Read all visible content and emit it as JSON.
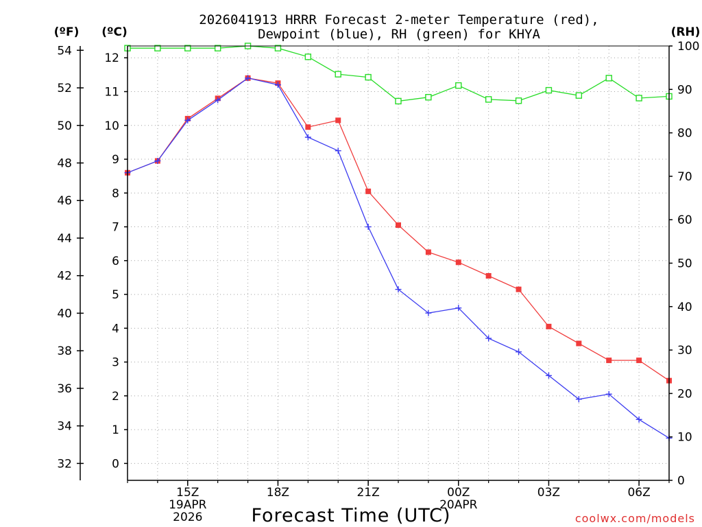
{
  "header": {
    "title_line1": "2026041913 HRRR Forecast 2-meter Temperature (red),",
    "title_line2": "Dewpoint (blue), RH (green) for KHYA",
    "unit_f": "(ºF)",
    "unit_c": "(ºC)",
    "unit_rh": "(RH)"
  },
  "footer": {
    "xlabel": "Forecast Time (UTC)",
    "watermark": "coolwx.com/models"
  },
  "colors": {
    "temperature": "#f03c3c",
    "dewpoint": "#3c3cf0",
    "rh": "#28dc28",
    "grid": "#a0a0a0"
  },
  "chart_data": {
    "type": "line",
    "title": "2026041913 HRRR Forecast 2-meter Temperature (red), Dewpoint (blue), RH (green) for KHYA",
    "xlabel": "Forecast Time (UTC)",
    "x_hours": [
      13,
      14,
      15,
      16,
      17,
      18,
      19,
      20,
      21,
      22,
      23,
      24,
      25,
      26,
      27,
      28,
      29,
      30,
      31
    ],
    "xlim": [
      13,
      31
    ],
    "x_ticks": [
      {
        "hour": 15,
        "lines": [
          "15Z",
          "19APR",
          "2026"
        ]
      },
      {
        "hour": 18,
        "lines": [
          "18Z"
        ]
      },
      {
        "hour": 21,
        "lines": [
          "21Z"
        ]
      },
      {
        "hour": 24,
        "lines": [
          "00Z",
          "20APR"
        ]
      },
      {
        "hour": 27,
        "lines": [
          "03Z"
        ]
      },
      {
        "hour": 30,
        "lines": [
          "06Z"
        ]
      }
    ],
    "y_celsius": {
      "label": "(ºC)",
      "range": [
        -0.5,
        12.35
      ],
      "ticks": [
        0,
        1,
        2,
        3,
        4,
        5,
        6,
        7,
        8,
        9,
        10,
        11,
        12
      ]
    },
    "y_fahrenheit": {
      "label": "(ºF)",
      "ticks": [
        32,
        34,
        36,
        38,
        40,
        42,
        44,
        46,
        48,
        50,
        52,
        54
      ]
    },
    "y_rh": {
      "label": "(RH)",
      "range": [
        0,
        100
      ],
      "ticks": [
        0,
        10,
        20,
        30,
        40,
        50,
        60,
        70,
        80,
        90,
        100
      ]
    },
    "series": [
      {
        "name": "Temperature",
        "axis": "celsius",
        "marker": "filled-square",
        "values": [
          8.6,
          8.95,
          10.2,
          10.8,
          11.4,
          11.25,
          9.95,
          10.15,
          8.05,
          7.05,
          6.25,
          5.95,
          5.55,
          5.15,
          4.05,
          3.55,
          3.05,
          3.05,
          2.45
        ]
      },
      {
        "name": "Dewpoint",
        "axis": "celsius",
        "marker": "plus",
        "values": [
          8.6,
          8.95,
          10.15,
          10.75,
          11.4,
          11.2,
          9.65,
          9.25,
          7.0,
          5.15,
          4.45,
          4.6,
          3.7,
          3.3,
          2.6,
          1.9,
          2.05,
          1.3,
          0.75
        ]
      },
      {
        "name": "RH",
        "axis": "rh",
        "marker": "open-square",
        "values": [
          99.5,
          99.5,
          99.5,
          99.5,
          100,
          99.5,
          97.5,
          93.5,
          92.8,
          87.3,
          88.2,
          90.9,
          87.7,
          87.4,
          89.8,
          88.6,
          92.6,
          88.0,
          88.4
        ]
      }
    ]
  }
}
